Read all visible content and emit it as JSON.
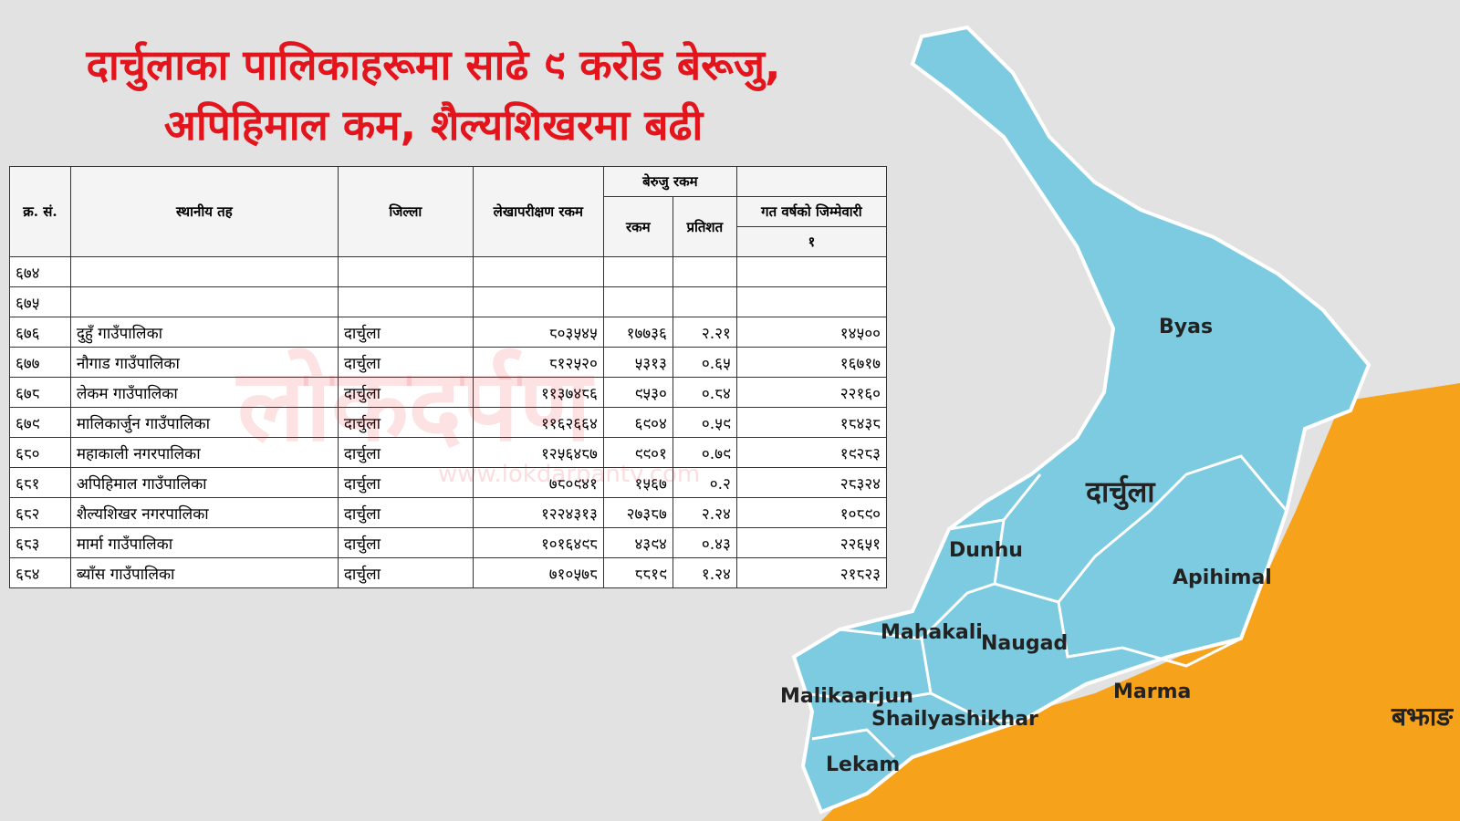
{
  "headline": {
    "lines": [
      "दार्चुलाका पालिकाहरूमा साढे ९ करोड बेरूजु,",
      "अपिहिमाल कम, शैल्यशिखरमा बढी"
    ]
  },
  "table": {
    "headers": {
      "serial": "क्र. सं.",
      "local_level": "स्थानीय तह",
      "district": "जिल्ला",
      "audit_amount": "लेखापरीक्षण रकम",
      "arrears": "बेरुजु रकम",
      "amount": "रकम",
      "percent": "प्रतिशत",
      "last_year": "गत वर्षको जिम्मेवारी",
      "last_year_col": "१"
    },
    "rows": [
      [
        "६७४",
        "",
        "",
        "",
        "",
        "",
        ""
      ],
      [
        "६७५",
        "",
        "",
        "",
        "",
        "",
        ""
      ],
      [
        "६७६",
        "दुहुँ गाउँपालिका",
        "दार्चुला",
        "८०३५४५",
        "१७७३६",
        "२.२१",
        "१४५००"
      ],
      [
        "६७७",
        "नौगाड गाउँपालिका",
        "दार्चुला",
        "८१२५२०",
        "५३१३",
        "०.६५",
        "१६७१७"
      ],
      [
        "६७८",
        "लेकम गाउँपालिका",
        "दार्चुला",
        "११३७४८६",
        "९५३०",
        "०.८४",
        "२२१६०"
      ],
      [
        "६७९",
        "मालिकार्जुन गाउँपालिका",
        "दार्चुला",
        "११६२६६४",
        "६९०४",
        "०.५९",
        "१८४३८"
      ],
      [
        "६८०",
        "महाकाली नगरपालिका",
        "दार्चुला",
        "१२५६४८७",
        "९९०१",
        "०.७९",
        "१९२८३"
      ],
      [
        "६८१",
        "अपिहिमाल गाउँपालिका",
        "दार्चुला",
        "७८०९४१",
        "१५६७",
        "०.२",
        "२८३२४"
      ],
      [
        "६८२",
        "शैल्यशिखर नगरपालिका",
        "दार्चुला",
        "१२२४३१३",
        "२७३८७",
        "२.२४",
        "१०८९०"
      ],
      [
        "६८३",
        "मार्मा गाउँपालिका",
        "दार्चुला",
        "१०१६४९८",
        "४३९४",
        "०.४३",
        "२२६५१"
      ],
      [
        "६८४",
        "ब्याँस गाउँपालिका",
        "दार्चुला",
        "७१०५७८",
        "८८१९",
        "१.२४",
        "२१८२३"
      ]
    ]
  },
  "watermark": {
    "name": "लोकदर्पण",
    "url": "www.lokdarpantv.com"
  },
  "map": {
    "labels": {
      "byas": "Byas",
      "district": "दार्चुला",
      "dunhu": "Dunhu",
      "apihimal": "Apihimal",
      "mahakali": "Mahakali",
      "naugad": "Naugad",
      "malikaarjun": "Malikaarjun",
      "marma": "Marma",
      "shailyashikhar": "Shailyashikhar",
      "lekam": "Lekam",
      "bajhang": "बझाङ"
    }
  }
}
